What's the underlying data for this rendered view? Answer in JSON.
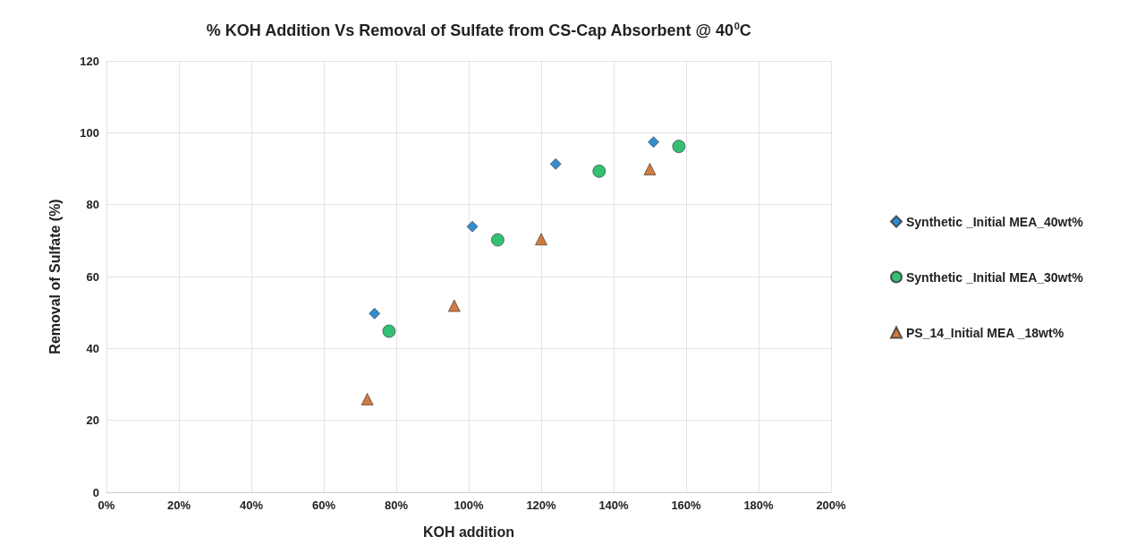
{
  "chart_data": {
    "type": "scatter",
    "title": "% KOH Addition Vs Removal of Sulfate from CS-Cap Absorbent @ 40$^{0}$C",
    "xlabel": "KOH addition",
    "ylabel": "Removal of Sulfate (%)",
    "series": [
      {
        "name": "Synthetic _Initial MEA_40wt%",
        "color": "#0070c0",
        "marker": "diamond",
        "x": [
          74,
          101,
          124,
          151
        ],
        "values": [
          49.7,
          73.9,
          91.3,
          97.4
        ]
      },
      {
        "name": "Synthetic _Initial MEA_30wt%",
        "color": "#00b050",
        "marker": "circle",
        "x": [
          78,
          108,
          136,
          158
        ],
        "values": [
          44.8,
          70.2,
          89.3,
          96.2
        ]
      },
      {
        "name": "PS_14_Initial MEA _18wt%",
        "color": "#c55a11",
        "marker": "triangle",
        "x": [
          72,
          96,
          120,
          150
        ],
        "values": [
          25.9,
          51.9,
          70.4,
          89.9
        ]
      }
    ],
    "xlim": [
      0,
      200
    ],
    "xticks": [
      {
        "value": 0,
        "label": "0%"
      },
      {
        "value": 20,
        "label": "20%"
      },
      {
        "value": 40,
        "label": "40%"
      },
      {
        "value": 60,
        "label": "60%"
      },
      {
        "value": 80,
        "label": "80%"
      },
      {
        "value": 100,
        "label": "100%"
      },
      {
        "value": 120,
        "label": "120%"
      },
      {
        "value": 140,
        "label": "140%"
      },
      {
        "value": 160,
        "label": "160%"
      },
      {
        "value": 180,
        "label": "180%"
      },
      {
        "value": 200,
        "label": "200%"
      }
    ],
    "ylim": [
      0,
      120
    ],
    "yticks": [
      0,
      20,
      40,
      60,
      80,
      100,
      120
    ],
    "grid": true,
    "legend": "right"
  }
}
